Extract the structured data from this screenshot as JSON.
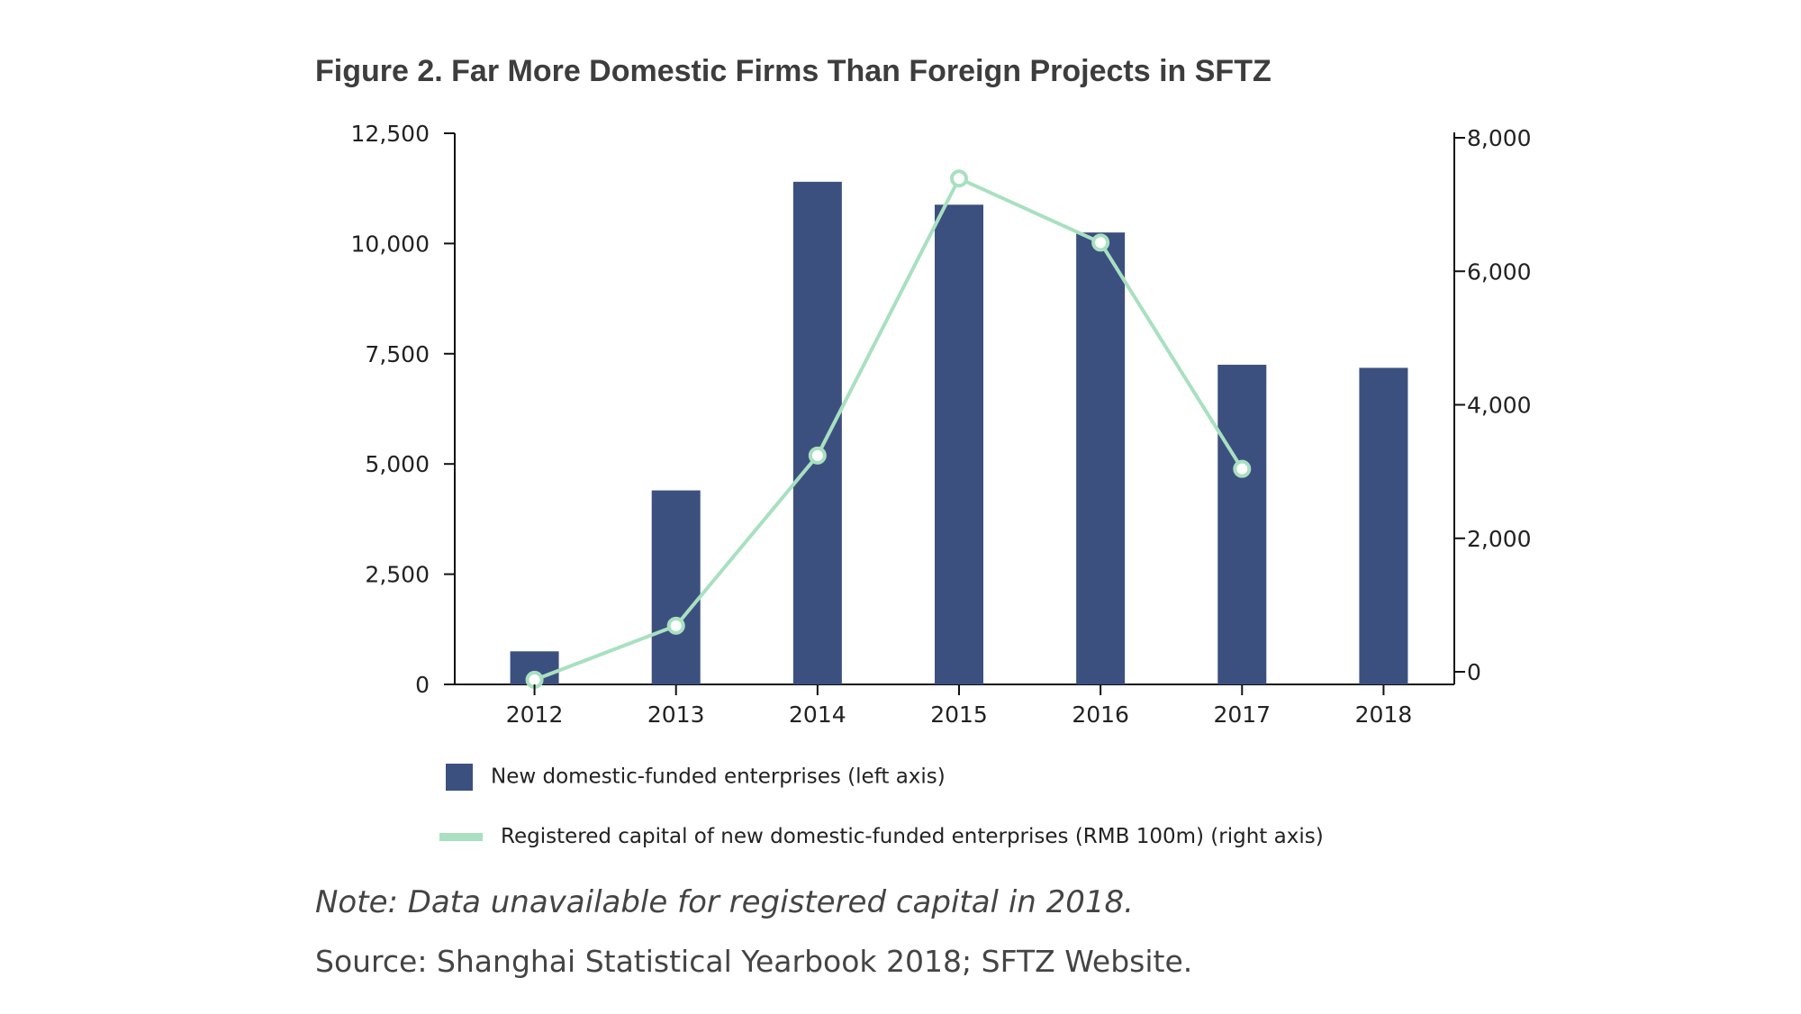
{
  "figure": {
    "title": "Figure 2. Far More Domestic Firms Than Foreign Projects in SFTZ",
    "note": "Note: Data unavailable for registered capital in 2018.",
    "source": "Source: Shanghai Statistical Yearbook 2018; SFTZ Website."
  },
  "colors": {
    "bar": "#3c5080",
    "line": "#a8e0c0",
    "axis": "#111111"
  },
  "chart_data": {
    "type": "bar",
    "categories": [
      "2012",
      "2013",
      "2014",
      "2015",
      "2016",
      "2017",
      "2018"
    ],
    "series": [
      {
        "name": "New domestic-funded enterprises (left axis)",
        "type": "bar",
        "axis": "left",
        "values": [
          750,
          4400,
          11400,
          10880,
          10250,
          7250,
          7180
        ]
      },
      {
        "name": "Registered capital of new domestic-funded enterprises (RMB 100m) (right axis)",
        "type": "line",
        "axis": "right",
        "values": [
          -120,
          690,
          3240,
          7390,
          6430,
          3040,
          null
        ]
      }
    ],
    "y_left": {
      "ylim": [
        0,
        12500
      ],
      "ticks": [
        "0",
        "2,500",
        "5,000",
        "7,500",
        "10,000",
        "12,500"
      ],
      "tick_values": [
        0,
        2500,
        5000,
        7500,
        10000,
        12500
      ]
    },
    "y_right": {
      "ylim": [
        0,
        8000
      ],
      "ticks": [
        "0",
        "2,000",
        "4,000",
        "6,000",
        "8,000"
      ],
      "tick_values": [
        0,
        2000,
        4000,
        6000,
        8000
      ]
    },
    "legend_position": "bottom",
    "grid": false
  }
}
